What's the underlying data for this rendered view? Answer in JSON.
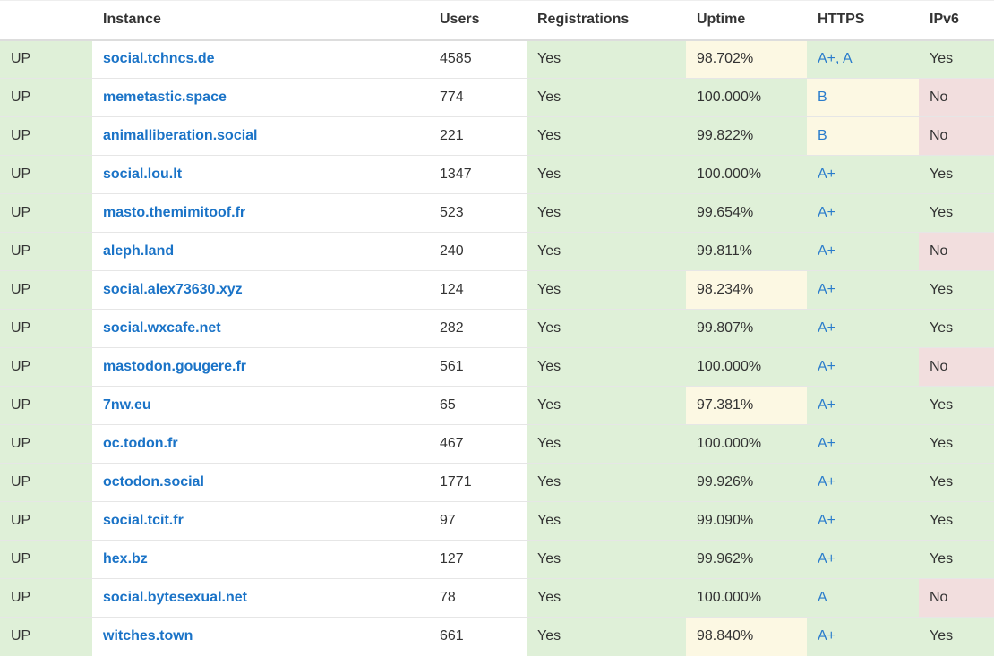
{
  "colors": {
    "green": "#dff0d8",
    "yellow": "#fcf8e3",
    "red": "#f2dede",
    "link": "#1a73c7"
  },
  "headers": [
    "",
    "Instance",
    "Users",
    "Registrations",
    "Uptime",
    "HTTPS",
    "IPv6"
  ],
  "rows": [
    {
      "status": "UP",
      "instance": "social.tchncs.de",
      "users": "4585",
      "registrations": "Yes",
      "uptime": "98.702%",
      "uptime_level": "yellow",
      "https": "A+, A",
      "https_level": "green",
      "ipv6": "Yes",
      "ipv6_level": "green"
    },
    {
      "status": "UP",
      "instance": "memetastic.space",
      "users": "774",
      "registrations": "Yes",
      "uptime": "100.000%",
      "uptime_level": "green",
      "https": "B",
      "https_level": "yellow",
      "ipv6": "No",
      "ipv6_level": "red"
    },
    {
      "status": "UP",
      "instance": "animalliberation.social",
      "users": "221",
      "registrations": "Yes",
      "uptime": "99.822%",
      "uptime_level": "green",
      "https": "B",
      "https_level": "yellow",
      "ipv6": "No",
      "ipv6_level": "red"
    },
    {
      "status": "UP",
      "instance": "social.lou.lt",
      "users": "1347",
      "registrations": "Yes",
      "uptime": "100.000%",
      "uptime_level": "green",
      "https": "A+",
      "https_level": "green",
      "ipv6": "Yes",
      "ipv6_level": "green"
    },
    {
      "status": "UP",
      "instance": "masto.themimitoof.fr",
      "users": "523",
      "registrations": "Yes",
      "uptime": "99.654%",
      "uptime_level": "green",
      "https": "A+",
      "https_level": "green",
      "ipv6": "Yes",
      "ipv6_level": "green"
    },
    {
      "status": "UP",
      "instance": "aleph.land",
      "users": "240",
      "registrations": "Yes",
      "uptime": "99.811%",
      "uptime_level": "green",
      "https": "A+",
      "https_level": "green",
      "ipv6": "No",
      "ipv6_level": "red"
    },
    {
      "status": "UP",
      "instance": "social.alex73630.xyz",
      "users": "124",
      "registrations": "Yes",
      "uptime": "98.234%",
      "uptime_level": "yellow",
      "https": "A+",
      "https_level": "green",
      "ipv6": "Yes",
      "ipv6_level": "green"
    },
    {
      "status": "UP",
      "instance": "social.wxcafe.net",
      "users": "282",
      "registrations": "Yes",
      "uptime": "99.807%",
      "uptime_level": "green",
      "https": "A+",
      "https_level": "green",
      "ipv6": "Yes",
      "ipv6_level": "green"
    },
    {
      "status": "UP",
      "instance": "mastodon.gougere.fr",
      "users": "561",
      "registrations": "Yes",
      "uptime": "100.000%",
      "uptime_level": "green",
      "https": "A+",
      "https_level": "green",
      "ipv6": "No",
      "ipv6_level": "red"
    },
    {
      "status": "UP",
      "instance": "7nw.eu",
      "users": "65",
      "registrations": "Yes",
      "uptime": "97.381%",
      "uptime_level": "yellow",
      "https": "A+",
      "https_level": "green",
      "ipv6": "Yes",
      "ipv6_level": "green"
    },
    {
      "status": "UP",
      "instance": "oc.todon.fr",
      "users": "467",
      "registrations": "Yes",
      "uptime": "100.000%",
      "uptime_level": "green",
      "https": "A+",
      "https_level": "green",
      "ipv6": "Yes",
      "ipv6_level": "green"
    },
    {
      "status": "UP",
      "instance": "octodon.social",
      "users": "1771",
      "registrations": "Yes",
      "uptime": "99.926%",
      "uptime_level": "green",
      "https": "A+",
      "https_level": "green",
      "ipv6": "Yes",
      "ipv6_level": "green"
    },
    {
      "status": "UP",
      "instance": "social.tcit.fr",
      "users": "97",
      "registrations": "Yes",
      "uptime": "99.090%",
      "uptime_level": "green",
      "https": "A+",
      "https_level": "green",
      "ipv6": "Yes",
      "ipv6_level": "green"
    },
    {
      "status": "UP",
      "instance": "hex.bz",
      "users": "127",
      "registrations": "Yes",
      "uptime": "99.962%",
      "uptime_level": "green",
      "https": "A+",
      "https_level": "green",
      "ipv6": "Yes",
      "ipv6_level": "green"
    },
    {
      "status": "UP",
      "instance": "social.bytesexual.net",
      "users": "78",
      "registrations": "Yes",
      "uptime": "100.000%",
      "uptime_level": "green",
      "https": "A",
      "https_level": "green",
      "ipv6": "No",
      "ipv6_level": "red"
    },
    {
      "status": "UP",
      "instance": "witches.town",
      "users": "661",
      "registrations": "Yes",
      "uptime": "98.840%",
      "uptime_level": "yellow",
      "https": "A+",
      "https_level": "green",
      "ipv6": "Yes",
      "ipv6_level": "green"
    }
  ]
}
